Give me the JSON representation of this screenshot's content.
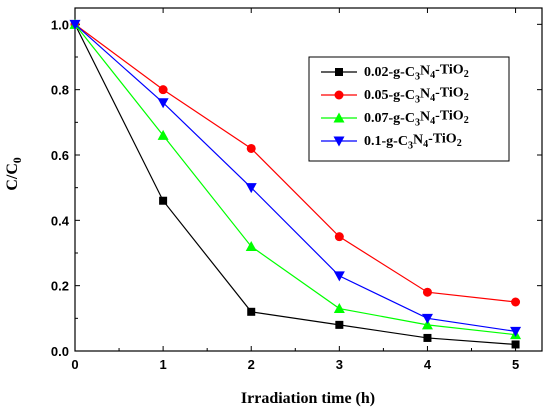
{
  "chart_data": {
    "type": "line",
    "xlabel": "Irradiation time (h)",
    "ylabel": "C/C0",
    "xlim": [
      0,
      5.3
    ],
    "ylim": [
      0,
      1.05
    ],
    "x_ticks": [
      "0",
      "1",
      "2",
      "3",
      "4",
      "5"
    ],
    "y_ticks": [
      "0.0",
      "0.2",
      "0.4",
      "0.6",
      "0.8",
      "1.0"
    ],
    "legend_position": "top-right",
    "x": [
      0,
      1,
      2,
      3,
      4,
      5
    ],
    "series": [
      {
        "name": "0.02-g-C3N4-TiO2",
        "color": "#000000",
        "marker": "square",
        "values": [
          1.0,
          0.46,
          0.12,
          0.08,
          0.04,
          0.02
        ]
      },
      {
        "name": "0.05-g-C3N4-TiO2",
        "color": "#ff0000",
        "marker": "circle",
        "values": [
          1.0,
          0.8,
          0.62,
          0.35,
          0.18,
          0.15
        ]
      },
      {
        "name": "0.07-g-C3N4-TiO2",
        "color": "#00ff00",
        "marker": "triangle-up",
        "values": [
          1.0,
          0.66,
          0.32,
          0.13,
          0.08,
          0.05
        ]
      },
      {
        "name": "0.1-g-C3N4-TiO2",
        "color": "#0000ff",
        "marker": "triangle-down",
        "values": [
          1.0,
          0.76,
          0.5,
          0.23,
          0.1,
          0.06
        ]
      }
    ]
  }
}
